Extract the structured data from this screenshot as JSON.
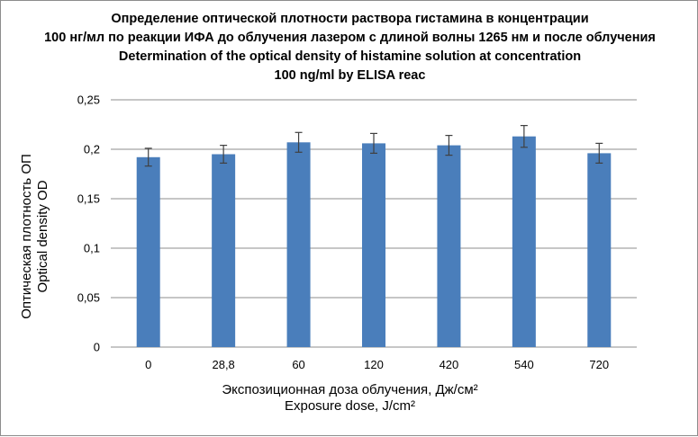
{
  "chart_data": {
    "type": "bar",
    "title_lines": [
      "Определение оптической плотности раствора гистамина в концентрации",
      "100 нг/мл по реакции ИФА до облучения лазером с длиной волны 1265 нм и после облучения",
      "Determination of  the optical density of histamine solution at concentration",
      "100 ng/ml by ELISA reac"
    ],
    "ylabel_lines": [
      "Оптическая плотность ОП",
      "Optical density OD"
    ],
    "xlabel_lines": [
      "Экспозиционная доза облучения, Дж/см²",
      "Exposure dose, J/cm²"
    ],
    "categories": [
      "0",
      "28,8",
      "60",
      "120",
      "420",
      "540",
      "720"
    ],
    "values": [
      0.192,
      0.195,
      0.207,
      0.206,
      0.204,
      0.213,
      0.196
    ],
    "error": [
      0.009,
      0.009,
      0.01,
      0.01,
      0.01,
      0.011,
      0.01
    ],
    "ylim": [
      0,
      0.25
    ],
    "yticks": [
      0,
      0.05,
      0.1,
      0.15,
      0.2,
      0.25
    ],
    "ytick_labels": [
      "0",
      "0,05",
      "0,1",
      "0,15",
      "0,2",
      "0,25"
    ],
    "grid": true,
    "legend": "none",
    "bar_color": "#4a7ebb",
    "grid_color": "#8c8c8c",
    "error_color": "#404040"
  }
}
